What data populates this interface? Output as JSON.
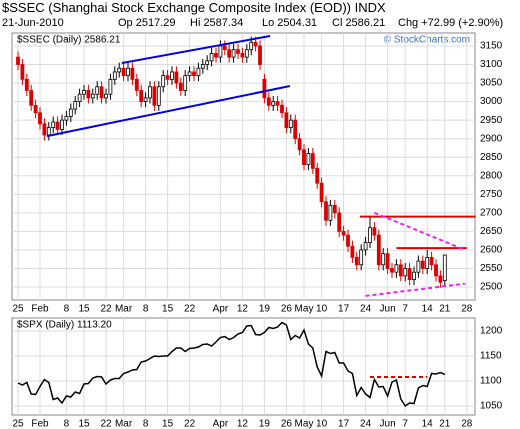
{
  "header": {
    "title": "$SSEC (Shanghai Stock Exchange Composite Index (EOD)) INDX",
    "date": "21-Jun-2010",
    "stats": [
      "Op 2517.29",
      "Hi 2587.34",
      "Lo 2504.31",
      "Cl 2586.21",
      "Chg +72.99 (+2.90%)"
    ],
    "credit": "© StockCharts.com"
  },
  "chart_data": [
    {
      "type": "candlestick",
      "legend_label": "$SSEC (Daily) 2586.21",
      "up_color": "#000000",
      "down_color": "#dd0000",
      "categories": [
        "25",
        null,
        null,
        null,
        null,
        "Feb",
        null,
        null,
        null,
        null,
        null,
        "8",
        null,
        null,
        null,
        "15",
        null,
        null,
        null,
        null,
        "22",
        null,
        null,
        null,
        "Mar",
        null,
        null,
        null,
        null,
        "8",
        null,
        null,
        null,
        null,
        "15",
        null,
        null,
        null,
        null,
        "22",
        null,
        null,
        null,
        null,
        null,
        null,
        "Apr",
        null,
        null,
        null,
        null,
        "12",
        null,
        null,
        null,
        null,
        "19",
        null,
        null,
        null,
        null,
        "26",
        null,
        null,
        null,
        "May",
        null,
        null,
        null,
        "10",
        null,
        null,
        null,
        null,
        "17",
        null,
        null,
        null,
        null,
        "24",
        null,
        null,
        null,
        null,
        "Jun",
        null,
        null,
        null,
        "7",
        null,
        null,
        null,
        null,
        "14",
        null,
        null,
        null,
        "21",
        null,
        null,
        null,
        null,
        "28"
      ],
      "open": [
        3120,
        3100,
        3060,
        3030,
        2990,
        2970,
        2940,
        2910,
        2930,
        2945,
        2925,
        2950,
        2960,
        2980,
        3000,
        3020,
        3030,
        3010,
        3020,
        3040,
        3010,
        3020,
        3060,
        3080,
        3090,
        3070,
        3090,
        3060,
        3030,
        3000,
        3010,
        3040,
        2990,
        3040,
        3070,
        3060,
        3080,
        3050,
        3030,
        3070,
        3080,
        3070,
        3090,
        3100,
        3110,
        3130,
        3120,
        3150,
        3140,
        3120,
        3140,
        3130,
        3120,
        3140,
        3160,
        3150,
        3060,
        3010,
        2990,
        3000,
        2990,
        2970,
        2930,
        2950,
        2900,
        2870,
        2830,
        2860,
        2820,
        2780,
        2730,
        2680,
        2720,
        2700,
        2650,
        2640,
        2610,
        2580,
        2560,
        2600,
        2620,
        2660,
        2640,
        2560,
        2590,
        2550,
        2540,
        2560,
        2530,
        2550,
        2520,
        2540,
        2570,
        2550,
        2580,
        2560,
        2530,
        2517.29,
        null,
        null,
        null,
        null,
        null
      ],
      "high": [
        3135,
        3115,
        3075,
        3045,
        3005,
        2985,
        2955,
        2945,
        2960,
        2960,
        2965,
        2975,
        2995,
        3015,
        3035,
        3045,
        3045,
        3035,
        3055,
        3055,
        3035,
        3075,
        3095,
        3105,
        3105,
        3105,
        3105,
        3075,
        3045,
        3025,
        3055,
        3055,
        3055,
        3085,
        3085,
        3095,
        3095,
        3065,
        3085,
        3095,
        3095,
        3105,
        3115,
        3125,
        3145,
        3145,
        3165,
        3165,
        3155,
        3155,
        3155,
        3145,
        3155,
        3175,
        3175,
        3165,
        3075,
        3025,
        3015,
        3015,
        3005,
        2985,
        2965,
        2965,
        2915,
        2885,
        2875,
        2875,
        2835,
        2795,
        2745,
        2735,
        2735,
        2715,
        2665,
        2655,
        2625,
        2595,
        2615,
        2635,
        2690,
        2675,
        2655,
        2605,
        2605,
        2565,
        2575,
        2575,
        2565,
        2565,
        2555,
        2585,
        2585,
        2600,
        2595,
        2575,
        2545,
        2587.34,
        null,
        null,
        null,
        null,
        null
      ],
      "low": [
        3085,
        3045,
        3015,
        2975,
        2955,
        2925,
        2895,
        2895,
        2915,
        2910,
        2910,
        2935,
        2945,
        2965,
        2985,
        3005,
        2995,
        2995,
        3005,
        2995,
        2995,
        3005,
        3045,
        3065,
        3055,
        3055,
        3045,
        3015,
        2985,
        2985,
        2995,
        2975,
        2975,
        3025,
        3045,
        3045,
        3035,
        3015,
        3015,
        3055,
        3055,
        3055,
        3075,
        3085,
        3095,
        3105,
        3105,
        3125,
        3105,
        3105,
        3115,
        3105,
        3105,
        3125,
        3135,
        3085,
        2995,
        2975,
        2975,
        2975,
        2955,
        2915,
        2915,
        2885,
        2855,
        2815,
        2815,
        2805,
        2765,
        2715,
        2665,
        2665,
        2685,
        2635,
        2625,
        2595,
        2565,
        2545,
        2545,
        2585,
        2605,
        2625,
        2545,
        2545,
        2535,
        2525,
        2525,
        2515,
        2515,
        2505,
        2505,
        2525,
        2535,
        2535,
        2545,
        2515,
        2498,
        2504.31,
        null,
        null,
        null,
        null,
        null
      ],
      "close": [
        3100,
        3060,
        3030,
        2990,
        2970,
        2940,
        2910,
        2930,
        2945,
        2925,
        2950,
        2960,
        2980,
        3000,
        3020,
        3030,
        3010,
        3020,
        3040,
        3010,
        3020,
        3060,
        3080,
        3090,
        3070,
        3090,
        3060,
        3030,
        3000,
        3010,
        3040,
        2990,
        3040,
        3070,
        3060,
        3080,
        3050,
        3030,
        3070,
        3080,
        3070,
        3090,
        3100,
        3110,
        3130,
        3120,
        3150,
        3140,
        3120,
        3140,
        3130,
        3120,
        3140,
        3160,
        3150,
        3100,
        3010,
        2990,
        3000,
        2990,
        2970,
        2930,
        2950,
        2900,
        2870,
        2830,
        2860,
        2820,
        2780,
        2730,
        2680,
        2720,
        2700,
        2650,
        2640,
        2610,
        2580,
        2560,
        2600,
        2620,
        2660,
        2640,
        2560,
        2590,
        2550,
        2540,
        2560,
        2530,
        2550,
        2520,
        2540,
        2570,
        2550,
        2580,
        2560,
        2530,
        2513,
        2586.21,
        null,
        null,
        null,
        null,
        null
      ],
      "trendlines": [
        {
          "color": "#0000dd",
          "dash": false,
          "x": [
            23.6,
            57.3
          ],
          "values": [
            3104,
            3177
          ]
        },
        {
          "color": "#0000dd",
          "dash": false,
          "x": [
            6.6,
            61.8
          ],
          "values": [
            2907,
            3042
          ]
        },
        {
          "color": "#dd0000",
          "dash": false,
          "x": [
            77.7,
            104
          ],
          "values": [
            2690,
            2690
          ]
        },
        {
          "color": "#dd0000",
          "dash": false,
          "x": [
            86,
            102
          ],
          "values": [
            2605,
            2605
          ]
        },
        {
          "color": "#ee22ee",
          "dash": true,
          "x": [
            81,
            101.6
          ],
          "values": [
            2700,
            2600
          ]
        },
        {
          "color": "#ee22ee",
          "dash": true,
          "x": [
            79,
            101.6
          ],
          "values": [
            2476,
            2509
          ]
        }
      ],
      "ylim": [
        2465,
        3185
      ],
      "yticks": [
        2500,
        2550,
        2600,
        2650,
        2700,
        2750,
        2800,
        2850,
        2900,
        2950,
        3000,
        3050,
        3100,
        3150
      ],
      "grid": true
    },
    {
      "type": "line",
      "legend_label": "$SPX (Daily) 1113.20",
      "color": "#000000",
      "categories": [
        "25",
        null,
        null,
        null,
        null,
        "Feb",
        null,
        null,
        null,
        null,
        null,
        "8",
        null,
        null,
        null,
        "15",
        null,
        null,
        null,
        null,
        "22",
        null,
        null,
        null,
        "Mar",
        null,
        null,
        null,
        null,
        "8",
        null,
        null,
        null,
        null,
        "15",
        null,
        null,
        null,
        null,
        "22",
        null,
        null,
        null,
        null,
        null,
        null,
        "Apr",
        null,
        null,
        null,
        null,
        "12",
        null,
        null,
        null,
        null,
        "19",
        null,
        null,
        null,
        null,
        "26",
        null,
        null,
        null,
        "May",
        null,
        null,
        null,
        "10",
        null,
        null,
        null,
        null,
        "17",
        null,
        null,
        null,
        null,
        "24",
        null,
        null,
        null,
        null,
        "Jun",
        null,
        null,
        null,
        "7",
        null,
        null,
        null,
        null,
        "14",
        null,
        null,
        null,
        "21",
        null,
        null,
        null,
        null,
        "28"
      ],
      "values": [
        1096,
        1092,
        1097,
        1074,
        1073,
        1089,
        1103,
        1097,
        1063,
        1066,
        1056,
        1070,
        1068,
        1078,
        1075,
        1094,
        1095,
        1106,
        1109,
        1108,
        1094,
        1102,
        1105,
        1105,
        1115,
        1118,
        1122,
        1123,
        1138,
        1140,
        1145,
        1150,
        1149,
        1150,
        1150,
        1159,
        1166,
        1166,
        1159,
        1165,
        1166,
        1168,
        1173,
        1174,
        1170,
        1178,
        1187,
        1189,
        1183,
        1187,
        1194,
        1197,
        1210,
        1211,
        1193,
        1192,
        1197,
        1207,
        1205,
        1208,
        1217,
        1212,
        1183,
        1191,
        1186,
        1202,
        1174,
        1166,
        1128,
        1110,
        1159,
        1155,
        1157,
        1136,
        1136,
        1120,
        1115,
        1071,
        1087,
        1074,
        1067,
        1103,
        1088,
        1089,
        1070,
        1098,
        1102,
        1064,
        1050,
        1056,
        1055,
        1086,
        1091,
        1089,
        1115,
        1114,
        1117,
        1113.2,
        null,
        null,
        null,
        null,
        null
      ],
      "trendlines": [
        {
          "color": "#dd0000",
          "dash": true,
          "x": [
            80,
            93
          ],
          "values": [
            1108,
            1108
          ]
        }
      ],
      "ylim": [
        1032,
        1226
      ],
      "yticks": [
        1050,
        1100,
        1150,
        1200
      ],
      "grid": true
    }
  ]
}
